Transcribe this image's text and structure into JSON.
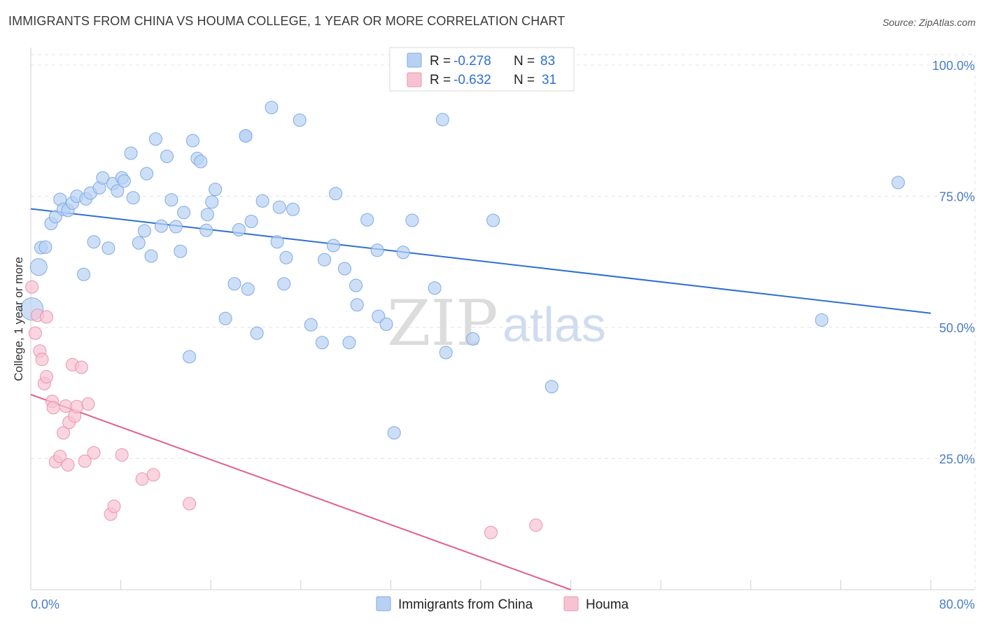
{
  "title": "IMMIGRANTS FROM CHINA VS HOUMA COLLEGE, 1 YEAR OR MORE CORRELATION CHART",
  "source": "Source: ZipAtlas.com",
  "watermark": {
    "part1": "ZIP",
    "part2": "atlas"
  },
  "colors": {
    "china_fill": "#b8d1f3",
    "china_stroke": "#7eaae3",
    "china_line": "#2f6fd0",
    "houma_fill": "#f7c3d3",
    "houma_stroke": "#ec93b0",
    "houma_line": "#e0608e",
    "grid": "#e3e3e3",
    "tick_label": "#4a7cc7"
  },
  "legend": {
    "rows": [
      {
        "r_label": "R =",
        "r_value": "-0.278",
        "n_label": "N =",
        "n_value": "83",
        "series": "china"
      },
      {
        "r_label": "R =",
        "r_value": "-0.632",
        "n_label": "N =",
        "n_value": "31",
        "series": "houma"
      }
    ]
  },
  "bottom_legend": [
    "Immigrants from China",
    "Houma"
  ],
  "chart_data": {
    "type": "scatter",
    "title": "IMMIGRANTS FROM CHINA VS HOUMA COLLEGE, 1 YEAR OR MORE CORRELATION CHART",
    "xlabel": "",
    "ylabel": "College, 1 year or more",
    "xlim": [
      0,
      80
    ],
    "ylim": [
      0,
      102
    ],
    "x_tick_labels": [
      "0.0%",
      "80.0%"
    ],
    "y_ticks": [
      25,
      50,
      75,
      100
    ],
    "y_tick_labels": [
      "25.0%",
      "50.0%",
      "75.0%",
      "100.0%"
    ],
    "grid": true,
    "legend_position": "top-center",
    "series": [
      {
        "name": "Immigrants from China",
        "key": "china",
        "points": [
          [
            0.1,
            53.5
          ],
          [
            0.7,
            61.5
          ],
          [
            0.9,
            65.2
          ],
          [
            1.3,
            65.3
          ],
          [
            1.8,
            69.8
          ],
          [
            2.2,
            71.1
          ],
          [
            2.6,
            74.4
          ],
          [
            2.9,
            72.5
          ],
          [
            3.3,
            72.3
          ],
          [
            3.7,
            73.7
          ],
          [
            4.1,
            75.0
          ],
          [
            4.9,
            74.5
          ],
          [
            5.3,
            75.6
          ],
          [
            5.6,
            66.3
          ],
          [
            6.1,
            76.6
          ],
          [
            6.4,
            78.5
          ],
          [
            6.9,
            65.1
          ],
          [
            7.3,
            77.4
          ],
          [
            7.7,
            76.0
          ],
          [
            8.1,
            78.5
          ],
          [
            8.3,
            77.9
          ],
          [
            8.9,
            83.2
          ],
          [
            9.1,
            74.7
          ],
          [
            9.6,
            66.1
          ],
          [
            10.1,
            68.4
          ],
          [
            10.3,
            79.3
          ],
          [
            10.7,
            63.6
          ],
          [
            11.1,
            85.9
          ],
          [
            11.6,
            69.3
          ],
          [
            12.1,
            82.6
          ],
          [
            12.5,
            74.3
          ],
          [
            12.9,
            69.2
          ],
          [
            13.3,
            64.5
          ],
          [
            13.6,
            71.9
          ],
          [
            14.1,
            44.4
          ],
          [
            14.4,
            85.6
          ],
          [
            14.8,
            82.2
          ],
          [
            15.1,
            81.6
          ],
          [
            15.6,
            68.5
          ],
          [
            15.7,
            71.5
          ],
          [
            16.1,
            73.9
          ],
          [
            16.4,
            76.3
          ],
          [
            17.3,
            51.7
          ],
          [
            18.1,
            58.3
          ],
          [
            18.5,
            68.6
          ],
          [
            19.1,
            86.5
          ],
          [
            19.3,
            57.3
          ],
          [
            19.6,
            70.2
          ],
          [
            20.1,
            48.9
          ],
          [
            20.6,
            74.1
          ],
          [
            21.4,
            91.9
          ],
          [
            21.9,
            66.3
          ],
          [
            22.1,
            72.9
          ],
          [
            22.5,
            58.3
          ],
          [
            22.7,
            63.3
          ],
          [
            23.3,
            72.5
          ],
          [
            23.9,
            89.5
          ],
          [
            24.9,
            50.5
          ],
          [
            25.9,
            47.1
          ],
          [
            26.1,
            62.9
          ],
          [
            26.9,
            65.6
          ],
          [
            27.1,
            75.5
          ],
          [
            27.9,
            61.2
          ],
          [
            28.3,
            47.1
          ],
          [
            28.9,
            58.0
          ],
          [
            29.0,
            54.3
          ],
          [
            29.9,
            70.5
          ],
          [
            30.8,
            64.7
          ],
          [
            30.9,
            52.1
          ],
          [
            31.6,
            50.6
          ],
          [
            32.3,
            29.9
          ],
          [
            33.1,
            64.3
          ],
          [
            33.9,
            70.4
          ],
          [
            35.9,
            57.5
          ],
          [
            36.6,
            89.6
          ],
          [
            36.9,
            45.2
          ],
          [
            39.3,
            47.8
          ],
          [
            41.1,
            70.4
          ],
          [
            46.3,
            38.7
          ],
          [
            70.3,
            51.4
          ],
          [
            77.1,
            77.6
          ],
          [
            4.7,
            60.1
          ],
          [
            19.1,
            86.5
          ]
        ]
      },
      {
        "name": "Houma",
        "key": "houma",
        "points": [
          [
            0.1,
            57.7
          ],
          [
            0.4,
            48.9
          ],
          [
            0.6,
            52.3
          ],
          [
            0.8,
            45.5
          ],
          [
            1.0,
            43.9
          ],
          [
            1.2,
            39.3
          ],
          [
            1.4,
            40.6
          ],
          [
            1.4,
            52.0
          ],
          [
            1.9,
            35.9
          ],
          [
            2.0,
            34.7
          ],
          [
            2.2,
            24.4
          ],
          [
            2.6,
            25.4
          ],
          [
            2.9,
            29.9
          ],
          [
            3.1,
            35.0
          ],
          [
            3.3,
            23.8
          ],
          [
            3.4,
            31.9
          ],
          [
            3.7,
            42.9
          ],
          [
            3.9,
            33.1
          ],
          [
            4.1,
            34.9
          ],
          [
            4.5,
            42.4
          ],
          [
            4.8,
            24.5
          ],
          [
            5.1,
            35.4
          ],
          [
            5.6,
            26.1
          ],
          [
            7.1,
            14.4
          ],
          [
            7.4,
            15.9
          ],
          [
            8.1,
            25.7
          ],
          [
            9.9,
            21.1
          ],
          [
            10.9,
            21.9
          ],
          [
            14.1,
            16.4
          ],
          [
            40.9,
            10.9
          ],
          [
            44.9,
            12.3
          ]
        ]
      }
    ],
    "trend_lines": [
      {
        "series": "Immigrants from China",
        "x": [
          0,
          80
        ],
        "y": [
          72.6,
          52.7
        ]
      },
      {
        "series": "Houma",
        "x": [
          0,
          48
        ],
        "y": [
          37.2,
          0.0
        ]
      }
    ]
  }
}
